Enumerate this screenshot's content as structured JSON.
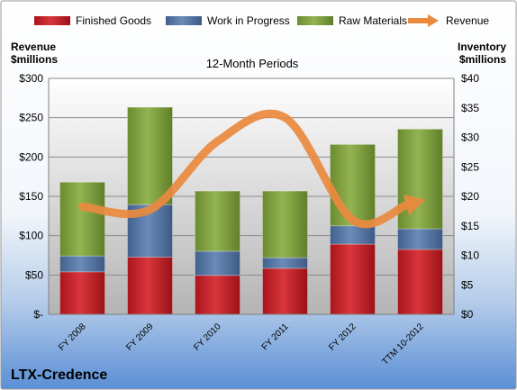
{
  "chart_data": {
    "type": "bar",
    "stacked": true,
    "title": "12-Month Periods",
    "company": "LTX-Credence",
    "ylabel_left": [
      "Revenue",
      "$millions"
    ],
    "ylabel_right": [
      "Inventory",
      "$millions"
    ],
    "left_axis": {
      "min": 0,
      "max": 300,
      "ticks": [
        0,
        50,
        100,
        150,
        200,
        250,
        300
      ],
      "tick_labels": [
        "$-",
        "$50",
        "$100",
        "$150",
        "$200",
        "$250",
        "$300"
      ]
    },
    "right_axis": {
      "min": 0,
      "max": 40,
      "ticks": [
        0,
        5,
        10,
        15,
        20,
        25,
        30,
        35,
        40
      ],
      "tick_labels": [
        "$0",
        "$5",
        "$10",
        "$15",
        "$20",
        "$25",
        "$30",
        "$35",
        "$40"
      ]
    },
    "categories": [
      "FY 2008",
      "FY 2009",
      "FY 2010",
      "FY 2011",
      "FY 2012",
      "TTM 10-2012"
    ],
    "series": [
      {
        "name": "Finished Goods",
        "axis": "right",
        "color": "#c0262b",
        "values": [
          7.2,
          9.7,
          6.6,
          7.8,
          11.9,
          11.0
        ]
      },
      {
        "name": "Work in Progress",
        "axis": "right",
        "color": "#4f6f9e",
        "values": [
          2.7,
          8.9,
          4.1,
          1.8,
          3.1,
          3.5
        ]
      },
      {
        "name": "Raw Materials",
        "axis": "right",
        "color": "#7a9a3c",
        "values": [
          12.5,
          16.5,
          10.2,
          11.3,
          13.8,
          16.9
        ]
      },
      {
        "name": "Revenue",
        "axis": "left",
        "type": "line",
        "color": "#e98a3f",
        "values": [
          137,
          133,
          220,
          250,
          120,
          144
        ]
      }
    ],
    "legend_position": "top",
    "grid": true
  }
}
